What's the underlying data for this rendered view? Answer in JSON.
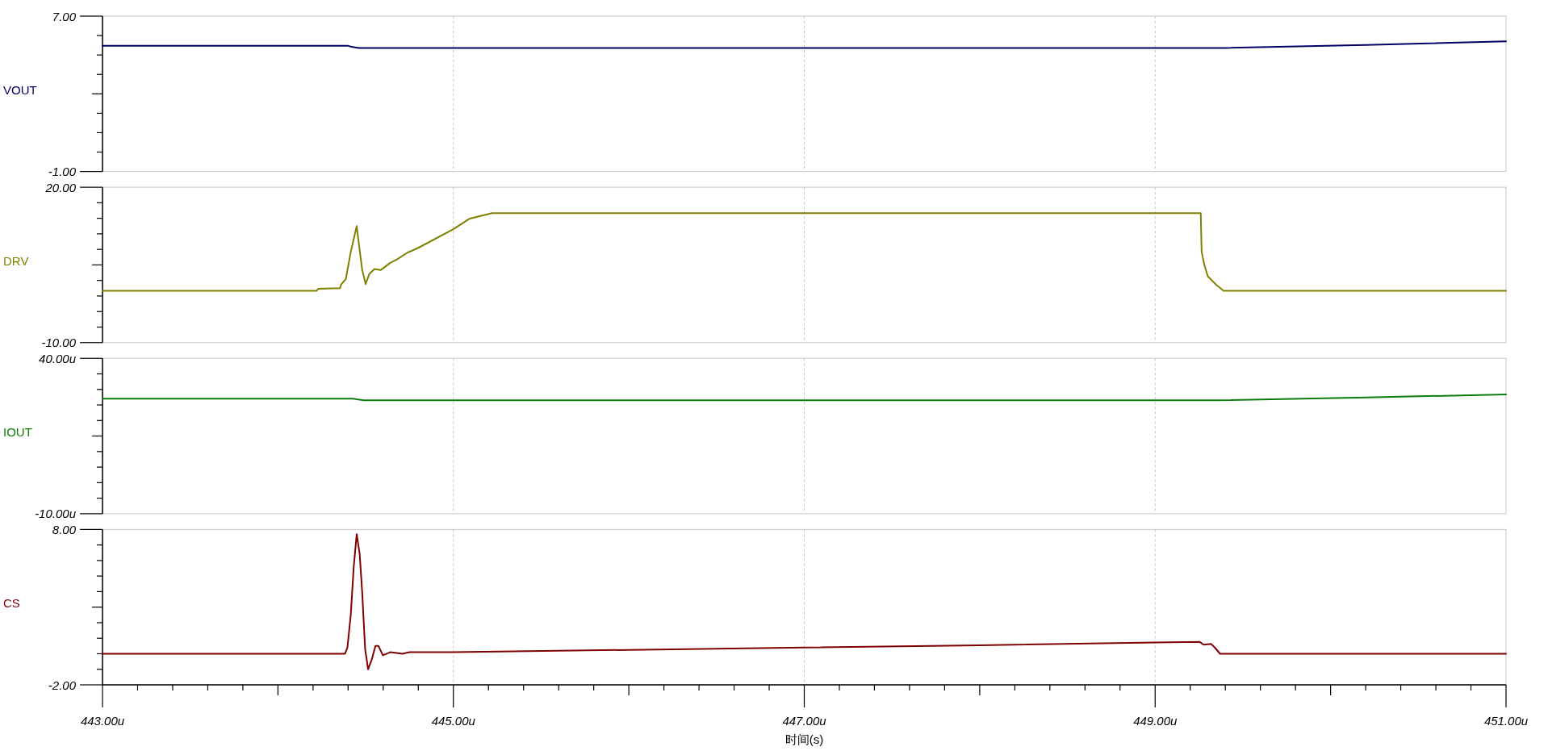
{
  "chart_data": [
    {
      "type": "line",
      "grid": "x",
      "tick_labels": "y",
      "xlim": [
        443,
        451
      ],
      "xticks": [
        {
          "value": 445,
          "label": null
        },
        {
          "value": 447,
          "label": null
        },
        {
          "value": 449,
          "label": null
        }
      ],
      "ylim": [
        -1,
        7
      ],
      "yticks": [
        {
          "value": -1,
          "label": "-1.00"
        },
        {
          "value": 0,
          "label": null
        },
        {
          "value": 1,
          "label": null
        },
        {
          "value": 2,
          "label": null
        },
        {
          "value": 3,
          "label": null
        },
        {
          "value": 4,
          "label": null
        },
        {
          "value": 5,
          "label": null
        },
        {
          "value": 6,
          "label": null
        },
        {
          "value": 7,
          "label": "7.00"
        }
      ],
      "x": [
        443,
        444.4,
        444.42,
        444.46,
        449.4,
        450.2,
        451
      ],
      "series": [
        {
          "name": "VOUT",
          "color": "#000066",
          "values": [
            5.47,
            5.47,
            5.42,
            5.36,
            5.36,
            5.52,
            5.7
          ]
        }
      ]
    },
    {
      "type": "line",
      "grid": "x",
      "tick_labels": "y",
      "xlim": [
        443,
        451
      ],
      "xticks": [
        {
          "value": 445,
          "label": null
        },
        {
          "value": 447,
          "label": null
        },
        {
          "value": 449,
          "label": null
        }
      ],
      "ylim": [
        -10,
        20
      ],
      "yticks": [
        {
          "value": -10,
          "label": "-10.00"
        },
        {
          "value": -7,
          "label": null
        },
        {
          "value": -4,
          "label": null
        },
        {
          "value": -1,
          "label": null
        },
        {
          "value": 2,
          "label": null
        },
        {
          "value": 5,
          "label": null
        },
        {
          "value": 8,
          "label": null
        },
        {
          "value": 11,
          "label": null
        },
        {
          "value": 14,
          "label": null
        },
        {
          "value": 17,
          "label": null
        },
        {
          "value": 20,
          "label": "20.00"
        }
      ],
      "x": [
        443,
        444.22,
        444.23,
        444.354,
        444.36,
        444.387,
        444.415,
        444.449,
        444.46,
        444.48,
        444.5,
        444.52,
        444.55,
        444.585,
        444.64,
        444.68,
        444.74,
        444.8,
        445.0,
        445.09,
        445.15,
        445.22,
        449.26,
        449.262,
        449.265,
        449.28,
        449.3,
        449.35,
        449.39,
        451
      ],
      "series": [
        {
          "name": "DRV",
          "color": "#808000",
          "values": [
            0,
            0,
            0.4,
            0.5,
            1.2,
            2.3,
            7.5,
            12.5,
            9.4,
            4.1,
            1.3,
            3.2,
            4.2,
            4.0,
            5.4,
            6.1,
            7.4,
            8.3,
            11.9,
            13.9,
            14.4,
            15,
            15,
            11.8,
            7.5,
            5.1,
            2.8,
            1.1,
            0,
            0
          ]
        }
      ]
    },
    {
      "type": "line",
      "grid": "x",
      "tick_labels": "y",
      "xlim": [
        443,
        451
      ],
      "xticks": [
        {
          "value": 445,
          "label": null
        },
        {
          "value": 447,
          "label": null
        },
        {
          "value": 449,
          "label": null
        }
      ],
      "ylim": [
        -10,
        40
      ],
      "yticks": [
        {
          "value": -10,
          "label": "-10.00u"
        },
        {
          "value": -5,
          "label": null
        },
        {
          "value": 0,
          "label": null
        },
        {
          "value": 5,
          "label": null
        },
        {
          "value": 10,
          "label": null
        },
        {
          "value": 15,
          "label": null
        },
        {
          "value": 20,
          "label": null
        },
        {
          "value": 25,
          "label": null
        },
        {
          "value": 30,
          "label": null
        },
        {
          "value": 35,
          "label": null
        },
        {
          "value": 40,
          "label": "40.00u"
        }
      ],
      "x": [
        443,
        444.43,
        444.45,
        444.49,
        449.35,
        450.2,
        451
      ],
      "series": [
        {
          "name": "IOUT",
          "color": "#0c7a0c",
          "values": [
            27,
            27,
            26.8,
            26.5,
            26.5,
            27.4,
            28.4
          ]
        }
      ]
    },
    {
      "type": "line",
      "grid": "x",
      "xlabel": "时间(s)",
      "xlim": [
        443,
        451
      ],
      "xticks": [
        {
          "value": 443,
          "label": "443.00u"
        },
        {
          "value": 443.2,
          "label": null
        },
        {
          "value": 443.4,
          "label": null
        },
        {
          "value": 443.6,
          "label": null
        },
        {
          "value": 443.8,
          "label": null
        },
        {
          "value": 444,
          "label": null
        },
        {
          "value": 444.2,
          "label": null
        },
        {
          "value": 444.4,
          "label": null
        },
        {
          "value": 444.6,
          "label": null
        },
        {
          "value": 444.8,
          "label": null
        },
        {
          "value": 445,
          "label": "445.00u"
        },
        {
          "value": 445.2,
          "label": null
        },
        {
          "value": 445.4,
          "label": null
        },
        {
          "value": 445.6,
          "label": null
        },
        {
          "value": 445.8,
          "label": null
        },
        {
          "value": 446,
          "label": null
        },
        {
          "value": 446.2,
          "label": null
        },
        {
          "value": 446.4,
          "label": null
        },
        {
          "value": 446.6,
          "label": null
        },
        {
          "value": 446.8,
          "label": null
        },
        {
          "value": 447,
          "label": "447.00u"
        },
        {
          "value": 447.2,
          "label": null
        },
        {
          "value": 447.4,
          "label": null
        },
        {
          "value": 447.6,
          "label": null
        },
        {
          "value": 447.8,
          "label": null
        },
        {
          "value": 448,
          "label": null
        },
        {
          "value": 448.2,
          "label": null
        },
        {
          "value": 448.4,
          "label": null
        },
        {
          "value": 448.6,
          "label": null
        },
        {
          "value": 448.8,
          "label": null
        },
        {
          "value": 449,
          "label": "449.00u"
        },
        {
          "value": 449.2,
          "label": null
        },
        {
          "value": 449.4,
          "label": null
        },
        {
          "value": 449.6,
          "label": null
        },
        {
          "value": 449.8,
          "label": null
        },
        {
          "value": 450,
          "label": null
        },
        {
          "value": 450.2,
          "label": null
        },
        {
          "value": 450.4,
          "label": null
        },
        {
          "value": 450.6,
          "label": null
        },
        {
          "value": 450.8,
          "label": null
        },
        {
          "value": 451,
          "label": "451.00u"
        }
      ],
      "ylim": [
        -2,
        8
      ],
      "yticks": [
        {
          "value": -2,
          "label": "-2.00"
        },
        {
          "value": -1,
          "label": null
        },
        {
          "value": 0,
          "label": null
        },
        {
          "value": 1,
          "label": null
        },
        {
          "value": 2,
          "label": null
        },
        {
          "value": 3,
          "label": null
        },
        {
          "value": 4,
          "label": null
        },
        {
          "value": 5,
          "label": null
        },
        {
          "value": 6,
          "label": null
        },
        {
          "value": 7,
          "label": null
        },
        {
          "value": 8,
          "label": "8.00"
        }
      ],
      "x": [
        443,
        444.382,
        444.396,
        444.415,
        444.432,
        444.449,
        444.466,
        444.48,
        444.497,
        444.514,
        444.534,
        444.556,
        444.573,
        444.598,
        444.64,
        444.71,
        444.75,
        444.84,
        445.0,
        446.0,
        447.0,
        448.0,
        449.0,
        449.254,
        449.277,
        449.318,
        449.34,
        449.37,
        451
      ],
      "series": [
        {
          "name": "CS",
          "color": "#800000",
          "values": [
            0,
            0,
            0.4,
            2.5,
            5.6,
            7.7,
            6.4,
            4.0,
            0.3,
            -1.0,
            -0.4,
            0.5,
            0.5,
            -0.1,
            0.1,
            0,
            0.1,
            0.1,
            0.1,
            0.25,
            0.4,
            0.55,
            0.72,
            0.76,
            0.58,
            0.64,
            0.4,
            0,
            0
          ]
        }
      ]
    }
  ]
}
